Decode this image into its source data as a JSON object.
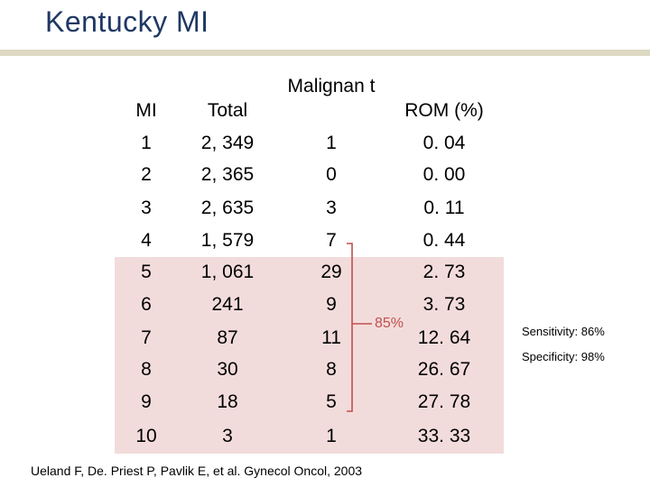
{
  "title": "Kentucky MI",
  "table": {
    "headers": {
      "mi": "MI",
      "total": "Total",
      "malignant": "Malignan t",
      "rom": "ROM (%)"
    },
    "rows": [
      {
        "mi": "1",
        "total": "2, 349",
        "malignant": "1",
        "rom": "0. 04"
      },
      {
        "mi": "2",
        "total": "2, 365",
        "malignant": "0",
        "rom": "0. 00"
      },
      {
        "mi": "3",
        "total": "2, 635",
        "malignant": "3",
        "rom": "0. 11"
      },
      {
        "mi": "4",
        "total": "1, 579",
        "malignant": "7",
        "rom": "0. 44"
      },
      {
        "mi": "5",
        "total": "1, 061",
        "malignant": "29",
        "rom": "2. 73"
      },
      {
        "mi": "6",
        "total": "241",
        "malignant": "9",
        "rom": "3. 73"
      },
      {
        "mi": "7",
        "total": "87",
        "malignant": "11",
        "rom": "12. 64"
      },
      {
        "mi": "8",
        "total": "30",
        "malignant": "8",
        "rom": "26. 67"
      },
      {
        "mi": "9",
        "total": "18",
        "malignant": "5",
        "rom": "27. 78"
      },
      {
        "mi": "10",
        "total": "3",
        "malignant": "1",
        "rom": "33. 33"
      }
    ]
  },
  "annotation": "85%",
  "side_notes": {
    "sensitivity": "Sensitivity: 86%",
    "specificity": "Specificity: 98%"
  },
  "citation": "Ueland F, De. Priest P, Pavlik E, et al. Gynecol Oncol, 2003",
  "colors": {
    "title": "#1f3864",
    "rule": "#ddd9c3",
    "highlight": "#f2dcdb",
    "bracket": "#c0504d"
  }
}
